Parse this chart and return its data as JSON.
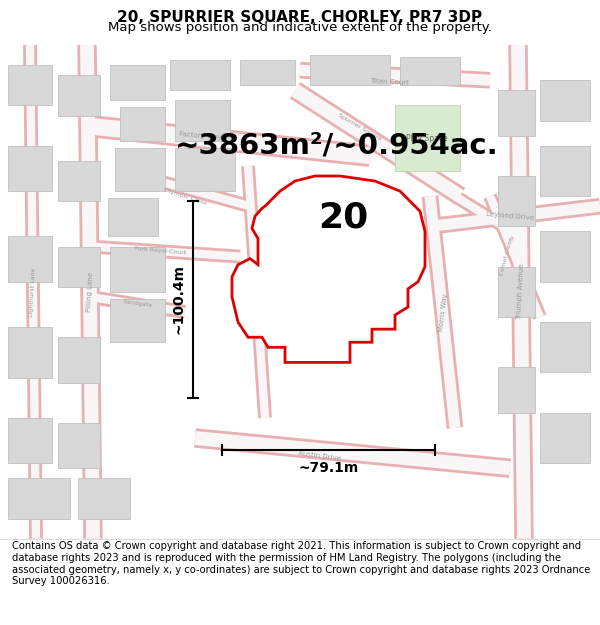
{
  "title_line1": "20, SPURRIER SQUARE, CHORLEY, PR7 3DP",
  "title_line2": "Map shows position and indicative extent of the property.",
  "area_text": "~3863m²/~0.954ac.",
  "label_number": "20",
  "dim_vertical": "~100.4m",
  "dim_horizontal": "~79.1m",
  "footer_text": "Contains OS data © Crown copyright and database right 2021. This information is subject to Crown copyright and database rights 2023 and is reproduced with the permission of HM Land Registry. The polygons (including the associated geometry, namely x, y co-ordinates) are subject to Crown copyright and database rights 2023 Ordnance Survey 100026316.",
  "bg_color": "#f5f5f5",
  "road_pink": "#e8b0b0",
  "road_white": "#f8f6f6",
  "building_fill": "#d8d8d8",
  "building_edge": "#c0c0c0",
  "plot_color": "#dd0000",
  "green_fill": "#d8ead0",
  "green_edge": "#b8cca8",
  "text_color": "#333333",
  "street_color": "#999999",
  "title_fontsize": 11,
  "subtitle_fontsize": 9.5,
  "area_fontsize": 21,
  "number_fontsize": 26,
  "dim_fontsize": 10,
  "footer_fontsize": 7.2
}
